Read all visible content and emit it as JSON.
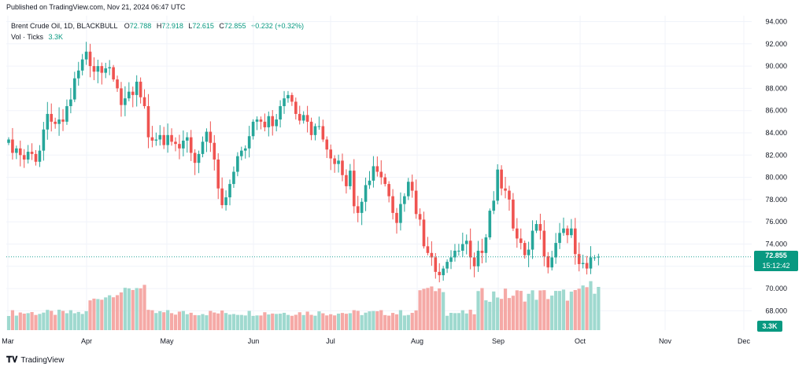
{
  "header": {
    "published": "Published on TradingView.com, Nov 21, 2024 06:47 UTC"
  },
  "legend": {
    "symbol": "Brent Crude Oil, 1D, BLACKBULL",
    "o_label": "O",
    "o_value": "72.788",
    "h_label": "H",
    "h_value": "72.918",
    "l_label": "L",
    "l_value": "72.615",
    "c_label": "C",
    "c_value": "72.855",
    "change": "+0.232 (+0.32%)",
    "vol_label": "Vol · Ticks",
    "vol_value": "3.3K"
  },
  "price_badge": {
    "price": "72.855",
    "countdown": "15:12:42"
  },
  "volume_badge": "3.3K",
  "footer": {
    "logo": "TradingView"
  },
  "colors": {
    "up": "#26a69a",
    "down": "#ef5350",
    "vol_up": "#9fd9cf",
    "vol_down": "#f5a9a6",
    "grid": "#f0f3fa"
  },
  "chart_data": {
    "type": "candlestick",
    "title": "Brent Crude Oil, 1D, BLACKBULL",
    "y_ticks": [
      "94.000",
      "92.000",
      "90.000",
      "88.000",
      "86.000",
      "84.000",
      "82.000",
      "80.000",
      "78.000",
      "76.000",
      "74.000",
      "72.000",
      "70.000",
      "68.000"
    ],
    "ylim": [
      66.5,
      94.5
    ],
    "x_ticks": [
      "Mar",
      "Apr",
      "May",
      "Jun",
      "Jul",
      "Aug",
      "Sep",
      "Oct",
      "Nov",
      "Dec"
    ],
    "last_price": 72.855,
    "grid": true,
    "close_series": [
      [
        0,
        83.4
      ],
      [
        6,
        82.2
      ],
      [
        12,
        82.6
      ],
      [
        18,
        82.0
      ],
      [
        24,
        81.6
      ],
      [
        30,
        82.3
      ],
      [
        36,
        82.1
      ],
      [
        42,
        81.4
      ],
      [
        48,
        82.4
      ],
      [
        54,
        84.3
      ],
      [
        60,
        85.7
      ],
      [
        66,
        85.0
      ],
      [
        72,
        84.8
      ],
      [
        78,
        85.2
      ],
      [
        84,
        85.0
      ],
      [
        90,
        86.4
      ],
      [
        96,
        87.0
      ],
      [
        102,
        88.9
      ],
      [
        108,
        89.6
      ],
      [
        114,
        90.6
      ],
      [
        120,
        91.3
      ],
      [
        126,
        90.0
      ],
      [
        132,
        89.5
      ],
      [
        138,
        90.0
      ],
      [
        144,
        89.4
      ],
      [
        150,
        89.8
      ],
      [
        156,
        89.9
      ],
      [
        162,
        88.8
      ],
      [
        168,
        88.0
      ],
      [
        174,
        86.5
      ],
      [
        180,
        87.1
      ],
      [
        186,
        87.7
      ],
      [
        192,
        87.4
      ],
      [
        198,
        88.6
      ],
      [
        204,
        87.2
      ],
      [
        210,
        86.4
      ],
      [
        216,
        83.6
      ],
      [
        222,
        83.3
      ],
      [
        228,
        83.4
      ],
      [
        234,
        83.8
      ],
      [
        240,
        82.9
      ],
      [
        246,
        83.8
      ],
      [
        252,
        83.2
      ],
      [
        258,
        83.0
      ],
      [
        264,
        82.6
      ],
      [
        270,
        83.3
      ],
      [
        276,
        83.6
      ],
      [
        282,
        82.2
      ],
      [
        288,
        81.3
      ],
      [
        294,
        82.1
      ],
      [
        300,
        83.2
      ],
      [
        306,
        84.1
      ],
      [
        312,
        83.1
      ],
      [
        318,
        81.6
      ],
      [
        324,
        79.0
      ],
      [
        330,
        77.5
      ],
      [
        336,
        78.2
      ],
      [
        342,
        79.4
      ],
      [
        348,
        80.5
      ],
      [
        354,
        81.9
      ],
      [
        360,
        82.4
      ],
      [
        366,
        82.6
      ],
      [
        372,
        83.7
      ],
      [
        378,
        85.0
      ],
      [
        384,
        85.2
      ],
      [
        390,
        85.0
      ],
      [
        396,
        84.5
      ],
      [
        402,
        85.5
      ],
      [
        408,
        84.6
      ],
      [
        414,
        85.2
      ],
      [
        420,
        86.4
      ],
      [
        426,
        87.1
      ],
      [
        432,
        87.4
      ],
      [
        438,
        86.8
      ],
      [
        444,
        85.7
      ],
      [
        450,
        85.1
      ],
      [
        456,
        85.6
      ],
      [
        462,
        85.0
      ],
      [
        468,
        83.8
      ],
      [
        474,
        84.6
      ],
      [
        480,
        84.6
      ],
      [
        486,
        83.4
      ],
      [
        492,
        82.5
      ],
      [
        498,
        81.7
      ],
      [
        504,
        81.2
      ],
      [
        510,
        81.5
      ],
      [
        516,
        80.2
      ],
      [
        522,
        79.2
      ],
      [
        528,
        80.6
      ],
      [
        534,
        77.4
      ],
      [
        540,
        76.8
      ],
      [
        546,
        77.8
      ],
      [
        552,
        79.3
      ],
      [
        558,
        79.7
      ],
      [
        564,
        81.0
      ],
      [
        570,
        80.5
      ],
      [
        576,
        80.0
      ],
      [
        582,
        79.4
      ],
      [
        588,
        78.3
      ],
      [
        594,
        76.8
      ],
      [
        600,
        75.9
      ],
      [
        606,
        77.6
      ],
      [
        612,
        78.3
      ],
      [
        618,
        79.6
      ],
      [
        624,
        78.8
      ],
      [
        630,
        76.7
      ],
      [
        636,
        76.2
      ],
      [
        642,
        73.8
      ],
      [
        648,
        73.2
      ],
      [
        654,
        72.8
      ],
      [
        660,
        71.5
      ],
      [
        666,
        71.2
      ],
      [
        672,
        71.8
      ],
      [
        678,
        72.4
      ],
      [
        684,
        72.8
      ],
      [
        690,
        73.4
      ],
      [
        696,
        73.4
      ],
      [
        702,
        74.0
      ],
      [
        708,
        74.3
      ],
      [
        714,
        72.8
      ],
      [
        720,
        72.0
      ],
      [
        726,
        73.4
      ],
      [
        732,
        73.2
      ],
      [
        738,
        74.6
      ],
      [
        744,
        77.0
      ],
      [
        750,
        77.9
      ],
      [
        756,
        80.7
      ],
      [
        762,
        79.0
      ],
      [
        768,
        78.8
      ],
      [
        774,
        78.0
      ],
      [
        780,
        75.4
      ],
      [
        786,
        74.5
      ],
      [
        792,
        74.1
      ],
      [
        798,
        73.0
      ],
      [
        804,
        73.5
      ],
      [
        810,
        75.2
      ],
      [
        816,
        75.8
      ],
      [
        822,
        75.2
      ],
      [
        828,
        72.9
      ],
      [
        834,
        71.9
      ],
      [
        840,
        72.8
      ],
      [
        846,
        74.1
      ],
      [
        852,
        75.0
      ],
      [
        858,
        75.4
      ],
      [
        864,
        74.8
      ],
      [
        870,
        75.4
      ],
      [
        876,
        73.1
      ],
      [
        882,
        72.2
      ],
      [
        888,
        72.3
      ],
      [
        894,
        71.8
      ],
      [
        900,
        72.8
      ],
      [
        906,
        72.8
      ],
      [
        912,
        72.86
      ]
    ],
    "volume_levels": "low-to-moderate with spikes in mid-April, early Aug, Sep-Oct",
    "last_volume": "3.3K"
  }
}
